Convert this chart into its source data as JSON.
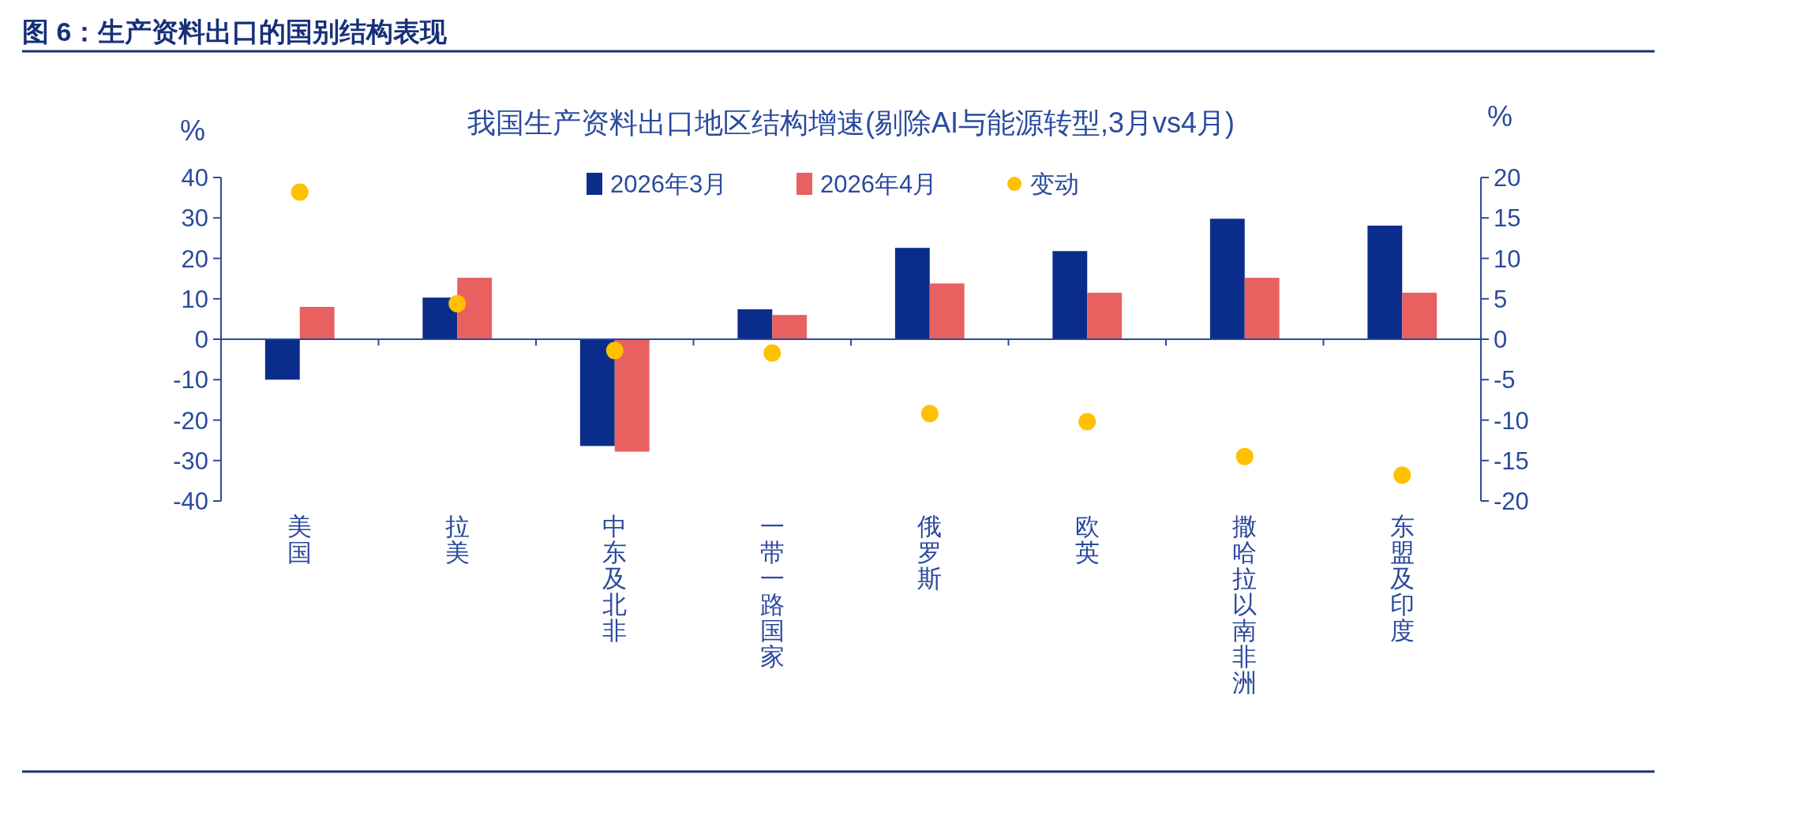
{
  "chart_data": {
    "type": "bar",
    "title": "图 6：生产资料出口的国别结构表现",
    "subtitle": "我国生产资料出口地区结构增速(剔除AI与能源转型,3月vs4月)",
    "ylabel": "%",
    "y2label": "%",
    "categories": [
      "美国",
      "拉美",
      "中东及北非",
      "一带一路国家",
      "俄罗斯",
      "欧英",
      "撒哈拉以南非洲",
      "东盟及印度"
    ],
    "series": [
      {
        "name": "2026年3月",
        "color": "#0a2d8c",
        "values": [
          -10,
          10.3,
          -26.4,
          7.4,
          22.6,
          21.8,
          29.8,
          28.1
        ]
      },
      {
        "name": "2026年4月",
        "color": "#e8605f",
        "values": [
          8,
          15.2,
          -27.8,
          6,
          13.8,
          11.5,
          15.2,
          11.5
        ]
      },
      {
        "name": "变动",
        "type": "scatter",
        "axis": "y2",
        "color": "#ffc000",
        "x": [
          "美国",
          "拉美",
          "中东及北非",
          "一带一路国家",
          "俄罗斯",
          "欧英",
          "撒哈拉以南非洲",
          "东盟及印度"
        ],
        "values": [
          18.2,
          4.4,
          -1.4,
          -1.7,
          -9.2,
          -10.2,
          -14.5,
          -16.8
        ]
      }
    ],
    "ylim": [
      -40,
      40
    ],
    "yticks": [
      -40,
      -30,
      -20,
      -10,
      0,
      10,
      20,
      30,
      40
    ],
    "y2lim": [
      -20,
      20
    ],
    "y2ticks": [
      -20,
      -15,
      -10,
      -5,
      0,
      5,
      10,
      15,
      20
    ],
    "ref_lines": [
      {
        "axis": "y",
        "value": 0,
        "color": "#2a4a9e"
      }
    ],
    "legend": "top",
    "grid": false,
    "marker": "circle"
  }
}
